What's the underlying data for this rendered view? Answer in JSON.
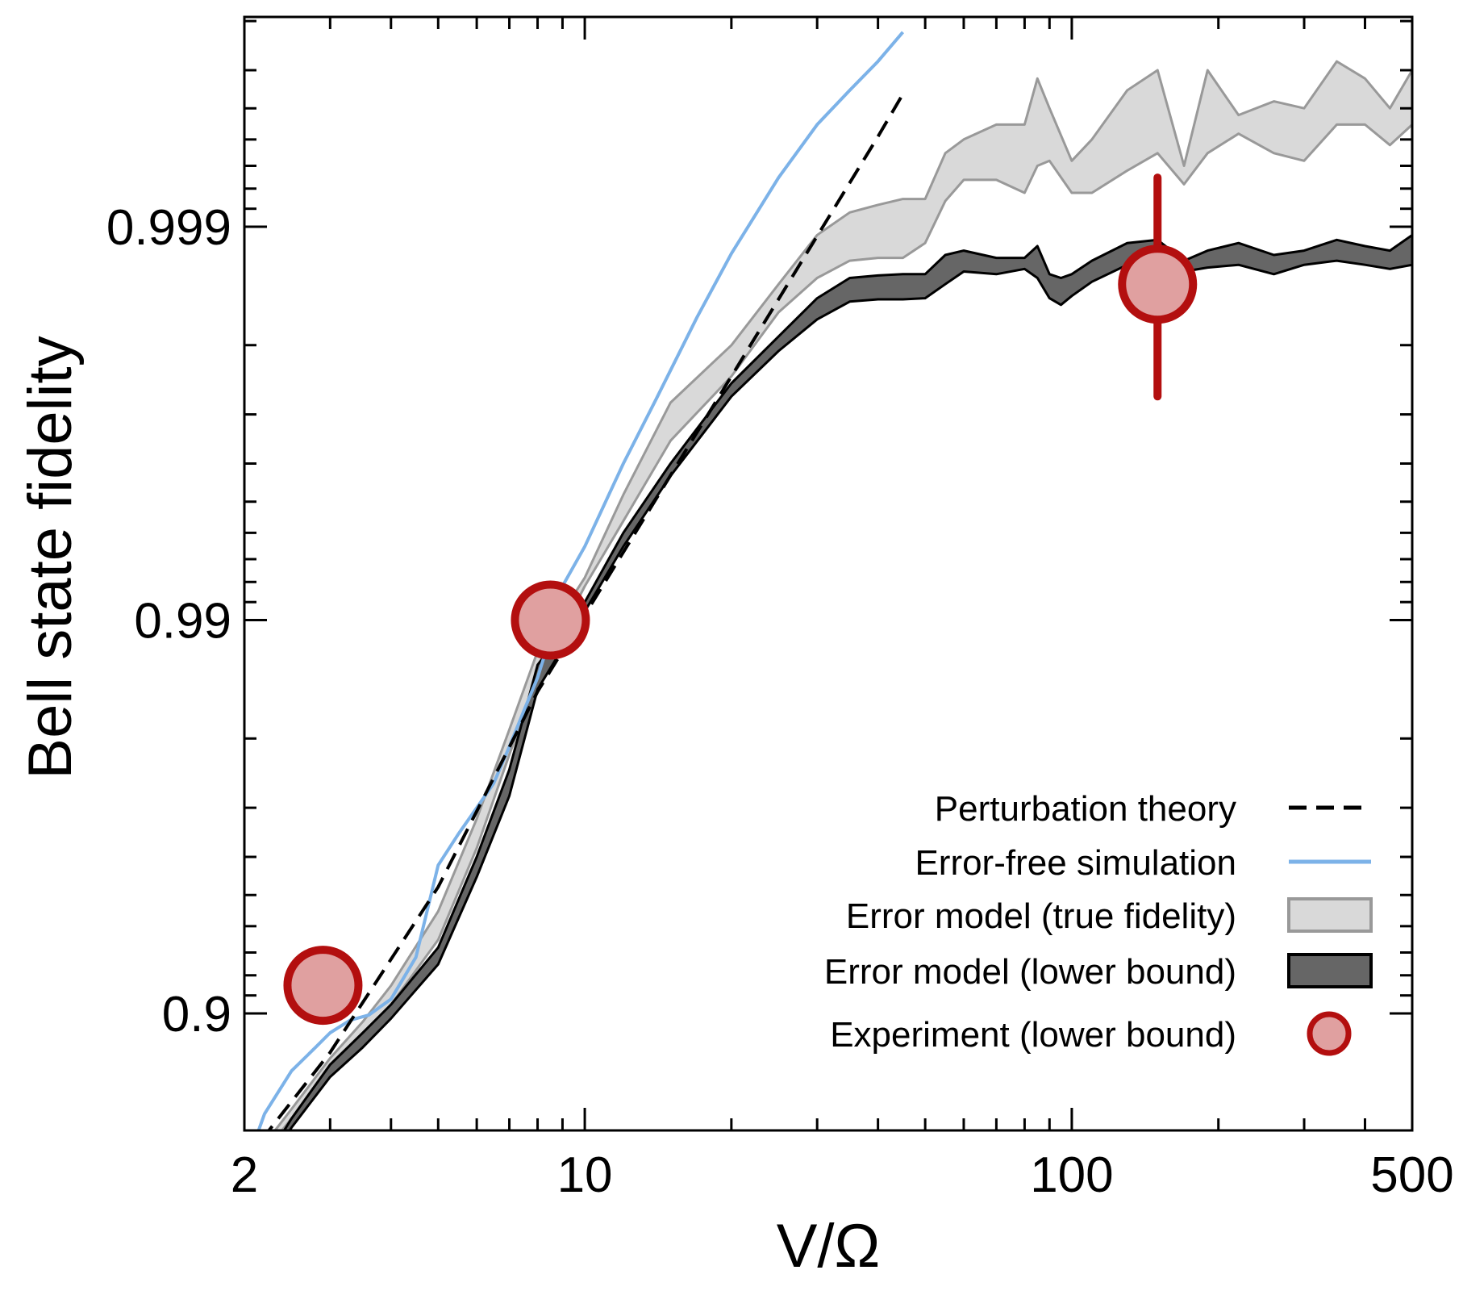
{
  "chart_data": {
    "type": "line",
    "xlabel": "V/Ω",
    "ylabel": "Bell state fidelity",
    "x_scale": "log",
    "y_scale": "infidelity-log",
    "xlim": [
      2,
      500
    ],
    "ylim": [
      0.7,
      0.99985
    ],
    "x_ticks": [
      {
        "value": 2,
        "label": "2"
      },
      {
        "value": 10,
        "label": "10"
      },
      {
        "value": 100,
        "label": "100"
      },
      {
        "value": 500,
        "label": "500"
      }
    ],
    "y_ticks": [
      {
        "value": 0.9,
        "label": "0.9"
      },
      {
        "value": 0.99,
        "label": "0.99"
      },
      {
        "value": 0.999,
        "label": "0.999"
      }
    ],
    "grid": false,
    "legend_position": "bottom-right",
    "legend": [
      {
        "label": "Perturbation theory",
        "style": "dashed-line",
        "color": "#000000"
      },
      {
        "label": "Error-free simulation",
        "style": "line",
        "color": "#7cb2e8"
      },
      {
        "label": "Error model (true fidelity)",
        "style": "band",
        "color": "#d9d9d9",
        "edge": "#999999"
      },
      {
        "label": "Error model (lower bound)",
        "style": "band",
        "color": "#666666",
        "edge": "#000000"
      },
      {
        "label": "Experiment (lower bound)",
        "style": "marker",
        "color": "#e0a0a0",
        "edge": "#b30f0f"
      }
    ],
    "series": [
      {
        "key": "perturbation",
        "x": [
          2,
          3,
          5,
          8,
          10,
          20,
          40,
          45
        ],
        "y": [
          0.7618,
          0.8743,
          0.9523,
          0.9848,
          0.9903,
          0.9976,
          0.99941,
          0.99954
        ]
      },
      {
        "key": "error_free",
        "x": [
          2,
          2.2,
          2.5,
          2.8,
          3,
          3.3,
          3.6,
          4,
          4.5,
          5,
          5.5,
          6,
          6.5,
          7,
          7.5,
          8,
          8.5,
          9,
          10,
          12,
          14,
          17,
          20,
          25,
          30,
          35,
          40,
          45
        ],
        "y": [
          0.75,
          0.82,
          0.86,
          0.878,
          0.888,
          0.896,
          0.899,
          0.908,
          0.928,
          0.958,
          0.965,
          0.97,
          0.974,
          0.979,
          0.983,
          0.986,
          0.989,
          0.9918,
          0.9935,
          0.996,
          0.99725,
          0.9983,
          0.99883,
          0.99925,
          0.99945,
          0.99955,
          0.99962,
          0.99968
        ]
      },
      {
        "key": "true_fidelity",
        "x": [
          2,
          2.5,
          3,
          3.5,
          4,
          5,
          6,
          7,
          8,
          10,
          12,
          15,
          20,
          25,
          30,
          35,
          40,
          45,
          50,
          55,
          60,
          70,
          80,
          85,
          90,
          100,
          110,
          130,
          150,
          170,
          190,
          220,
          260,
          300,
          350,
          400,
          450,
          500
        ],
        "lower": [
          0.74,
          0.815,
          0.86,
          0.885,
          0.905,
          0.935,
          0.962,
          0.978,
          0.986,
          0.9918,
          0.9944,
          0.9965,
          0.9976,
          0.99835,
          0.99865,
          0.99878,
          0.9988,
          0.9988,
          0.9989,
          0.99914,
          0.99924,
          0.99924,
          0.99918,
          0.9993,
          0.99932,
          0.99918,
          0.99918,
          0.99928,
          0.99935,
          0.99922,
          0.99935,
          0.99942,
          0.99935,
          0.99932,
          0.99945,
          0.99945,
          0.99938,
          0.99945
        ],
        "upper": [
          0.75,
          0.825,
          0.87,
          0.895,
          0.915,
          0.945,
          0.968,
          0.981,
          0.988,
          0.9922,
          0.9952,
          0.9972,
          0.998,
          0.9986,
          0.99895,
          0.99908,
          0.99912,
          0.99915,
          0.99915,
          0.99935,
          0.9994,
          0.99945,
          0.99945,
          0.99958,
          0.9995,
          0.99932,
          0.9994,
          0.99955,
          0.9996,
          0.9993,
          0.9996,
          0.99948,
          0.99952,
          0.9995,
          0.99962,
          0.99958,
          0.9995,
          0.9996
        ]
      },
      {
        "key": "lower_bound",
        "x": [
          2,
          2.5,
          3,
          3.5,
          4,
          5,
          6,
          7,
          8,
          10,
          12,
          15,
          20,
          25,
          30,
          35,
          40,
          45,
          50,
          55,
          60,
          70,
          80,
          85,
          90,
          95,
          100,
          110,
          130,
          150,
          170,
          190,
          220,
          260,
          300,
          350,
          400,
          450,
          500
        ],
        "lower": [
          0.7,
          0.805,
          0.855,
          0.878,
          0.897,
          0.925,
          0.955,
          0.972,
          0.985,
          0.9905,
          0.9935,
          0.9957,
          0.9973,
          0.99793,
          0.99828,
          0.99845,
          0.99847,
          0.99847,
          0.99848,
          0.9986,
          0.9987,
          0.99868,
          0.99872,
          0.99865,
          0.99848,
          0.99842,
          0.9985,
          0.99862,
          0.99875,
          0.99882,
          0.9987,
          0.99873,
          0.99875,
          0.99868,
          0.99875,
          0.99878,
          0.99875,
          0.99872,
          0.99875
        ],
        "upper": [
          0.71,
          0.815,
          0.865,
          0.888,
          0.905,
          0.932,
          0.96,
          0.976,
          0.987,
          0.991,
          0.994,
          0.996,
          0.9975,
          0.9981,
          0.99848,
          0.99865,
          0.99867,
          0.99868,
          0.99868,
          0.99882,
          0.99885,
          0.9988,
          0.9988,
          0.99888,
          0.99868,
          0.99865,
          0.99868,
          0.99878,
          0.9989,
          0.99892,
          0.99878,
          0.99885,
          0.9989,
          0.99882,
          0.99885,
          0.99892,
          0.99888,
          0.99885,
          0.99895
        ]
      }
    ],
    "experiment": [
      {
        "x": 2.9,
        "y": 0.9152
      },
      {
        "x": 8.5,
        "y": 0.99
      },
      {
        "x": 150,
        "y": 0.9986,
        "y_low": 0.9973,
        "y_high": 0.99925
      }
    ]
  }
}
